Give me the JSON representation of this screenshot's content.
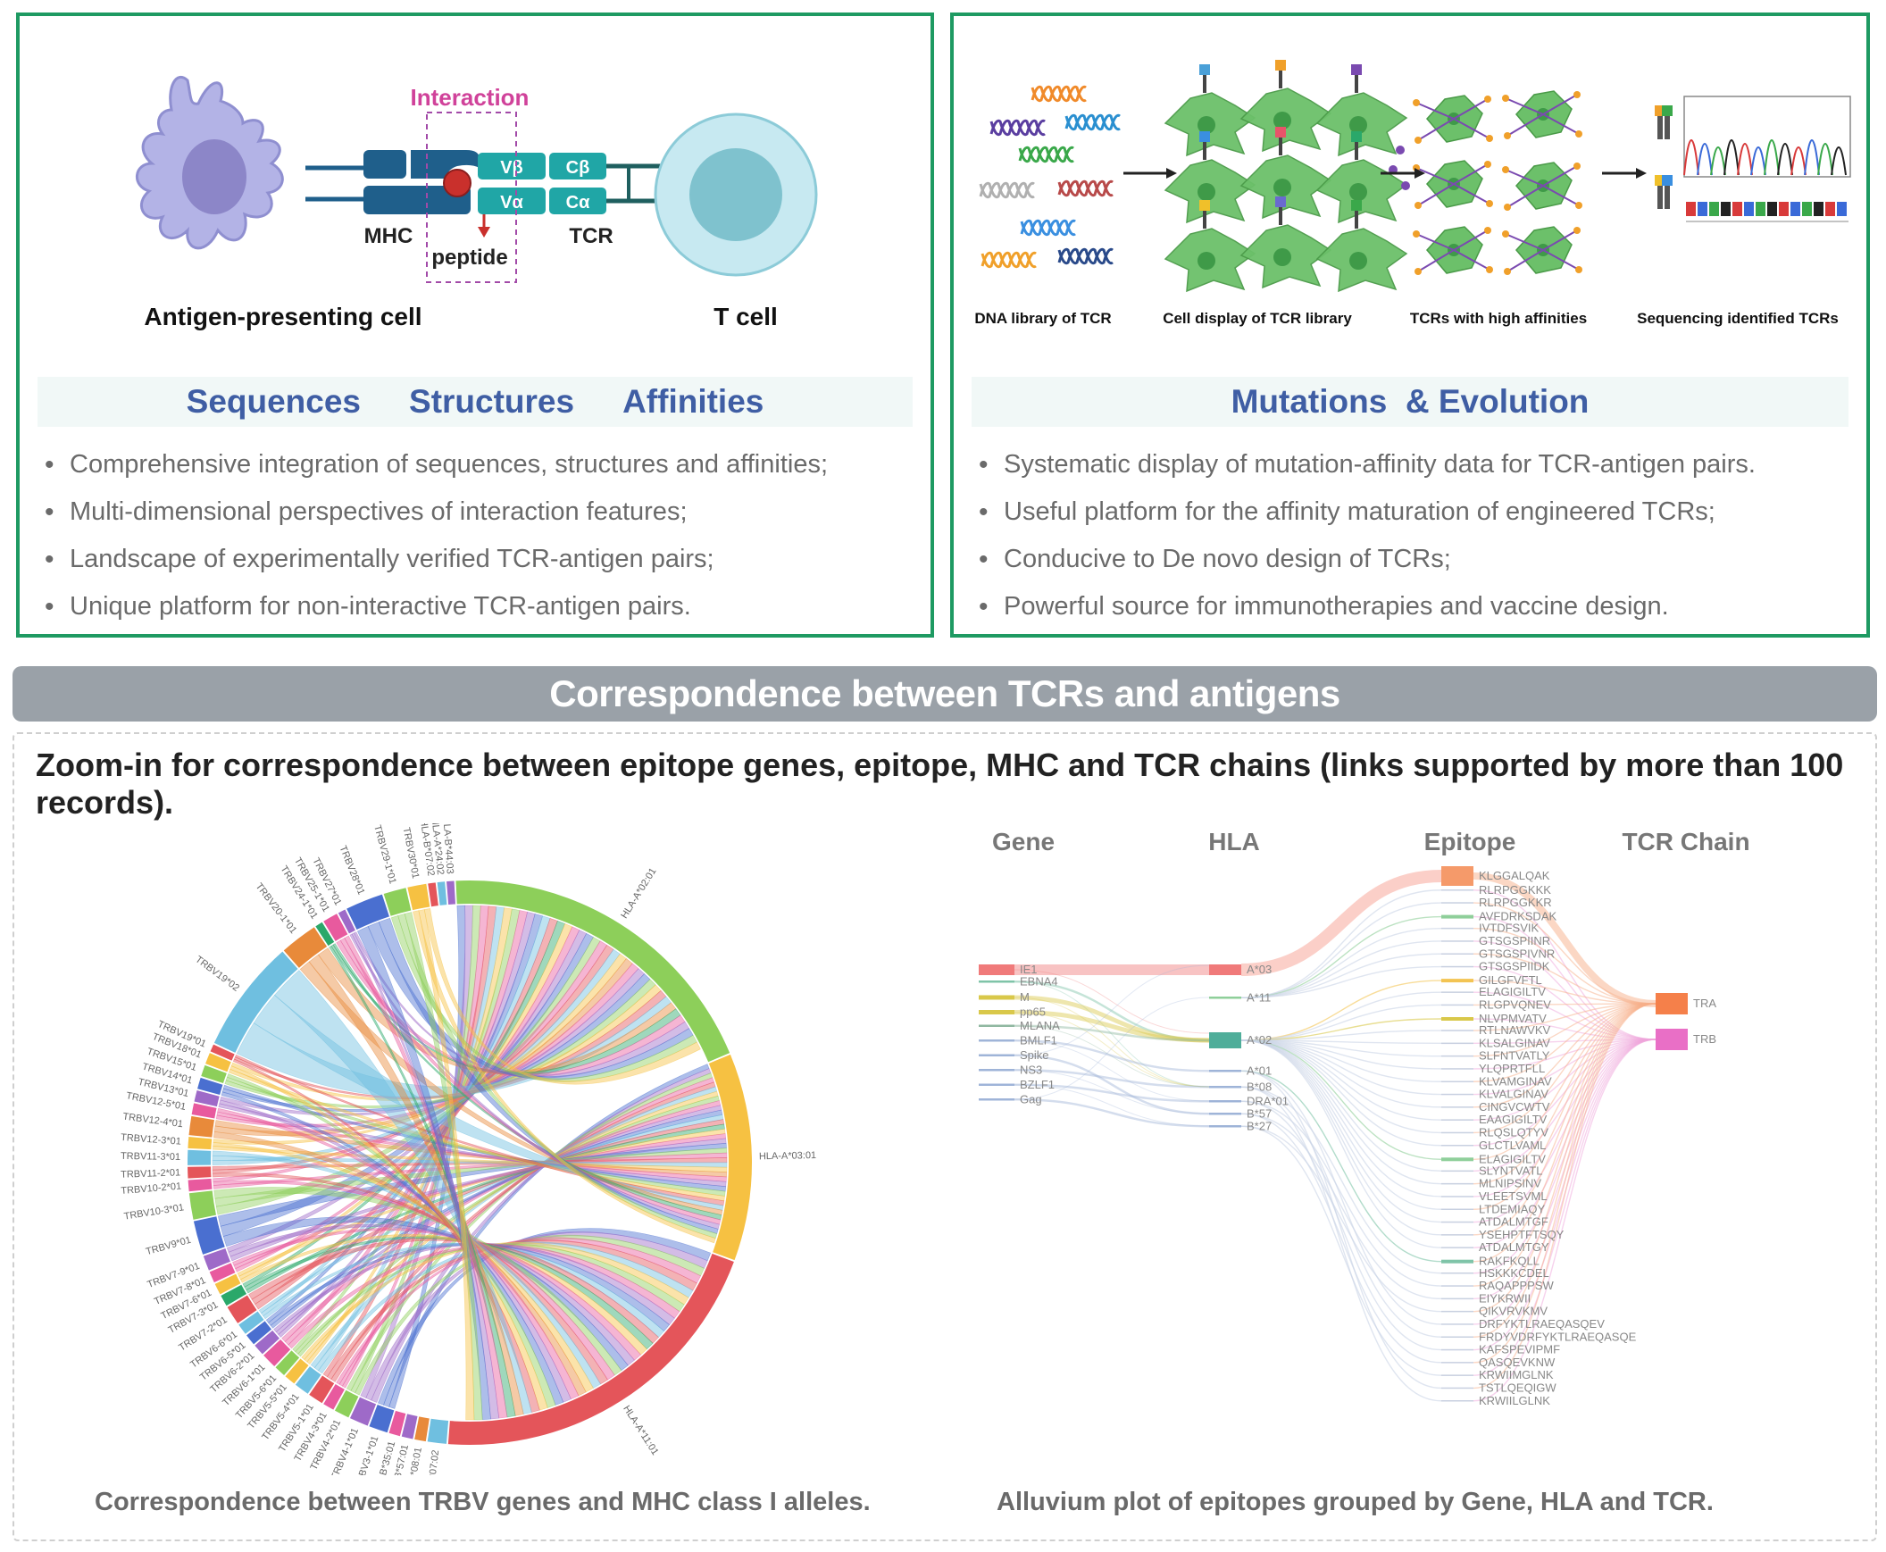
{
  "top_left": {
    "diagram": {
      "interaction_label": "Interaction",
      "vbeta": "Vβ",
      "cbeta": "Cβ",
      "valpha": "Vα",
      "calpha": "Cα",
      "mhc": "MHC",
      "peptide": "peptide",
      "tcr": "TCR",
      "apc_label": "Antigen-presenting cell",
      "tcell_label": "T cell"
    },
    "band": [
      "Sequences",
      "Structures",
      "Affinities"
    ],
    "bullets": [
      "Comprehensive integration of sequences, structures and affinities;",
      "Multi-dimensional perspectives of interaction features;",
      "Landscape of experimentally verified TCR-antigen pairs;",
      "Unique platform for non-interactive TCR-antigen pairs."
    ]
  },
  "top_right": {
    "steps": [
      "DNA library of TCR",
      "Cell display of TCR library",
      "TCRs with high affinities",
      "Sequencing identified TCRs"
    ],
    "band": "Mutations  & Evolution",
    "bullets": [
      "Systematic display of mutation-affinity data for TCR-antigen pairs.",
      "Useful platform for the affinity maturation of engineered TCRs;",
      "Conducive to De novo design of TCRs;",
      "Powerful source for immunotherapies and vaccine design."
    ]
  },
  "section_title": "Correspondence between TCRs and antigens",
  "lower": {
    "heading": "Zoom-in for correspondence between epitope genes, epitope, MHC and TCR chains (links supported by more than 100 records).",
    "chord_caption": "Correspondence between TRBV genes and MHC class I alleles.",
    "alluvium_caption": "Alluvium plot of epitopes grouped by Gene, HLA and TCR.",
    "chord": {
      "segments": [
        {
          "label": "HLA-A*02:01",
          "color": "#8dcf5a",
          "size": 90
        },
        {
          "label": "HLA-A*03:01",
          "color": "#f6c142",
          "size": 55
        },
        {
          "label": "HLA-A*11:01",
          "color": "#e4555a",
          "size": 95
        },
        {
          "label": "HLA-B*07:02",
          "color": "#6fbfe0",
          "size": 5
        },
        {
          "label": "HLA-B*08:01",
          "color": "#e88a3a",
          "size": 3
        },
        {
          "label": "HLA-B*57:01",
          "color": "#9e6ac8",
          "size": 3
        },
        {
          "label": "HLA-B*35:01",
          "color": "#e85a9e",
          "size": 3
        },
        {
          "label": "TRBV3-1*01",
          "color": "#4a6fd0",
          "size": 5
        },
        {
          "label": "TRBV4-1*01",
          "color": "#9e6ac8",
          "size": 5
        },
        {
          "label": "TRBV4-2*01",
          "color": "#8dcf5a",
          "size": 4
        },
        {
          "label": "TRBV4-3*01",
          "color": "#e85a9e",
          "size": 3
        },
        {
          "label": "TRBV5-1*01",
          "color": "#e4555a",
          "size": 4
        },
        {
          "label": "TRBV5-4*01",
          "color": "#6fbfe0",
          "size": 4
        },
        {
          "label": "TRBV5-5*01",
          "color": "#f6c142",
          "size": 3
        },
        {
          "label": "TRBV5-6*01",
          "color": "#8dcf5a",
          "size": 3
        },
        {
          "label": "TRBV6-1*01",
          "color": "#e85a9e",
          "size": 4
        },
        {
          "label": "TRBV6-2*01",
          "color": "#9e6ac8",
          "size": 3
        },
        {
          "label": "TRBV6-5*01",
          "color": "#4a6fd0",
          "size": 3
        },
        {
          "label": "TRBV6-6*01",
          "color": "#6fbfe0",
          "size": 3
        },
        {
          "label": "TRBV7-2*01",
          "color": "#e4555a",
          "size": 5
        },
        {
          "label": "TRBV7-3*01",
          "color": "#2aa86a",
          "size": 3
        },
        {
          "label": "TRBV7-6*01",
          "color": "#f6c142",
          "size": 3
        },
        {
          "label": "TRBV7-8*01",
          "color": "#e85a9e",
          "size": 3
        },
        {
          "label": "TRBV7-9*01",
          "color": "#9e6ac8",
          "size": 4
        },
        {
          "label": "TRBV9*01",
          "color": "#4a6fd0",
          "size": 9
        },
        {
          "label": "TRBV10-3*01",
          "color": "#8dcf5a",
          "size": 7
        },
        {
          "label": "TRBV10-2*01",
          "color": "#e85a9e",
          "size": 3
        },
        {
          "label": "TRBV11-2*01",
          "color": "#e4555a",
          "size": 3
        },
        {
          "label": "TRBV11-3*01",
          "color": "#6fbfe0",
          "size": 4
        },
        {
          "label": "TRBV12-3*01",
          "color": "#f6c142",
          "size": 3
        },
        {
          "label": "TRBV12-4*01",
          "color": "#e88a3a",
          "size": 5
        },
        {
          "label": "TRBV12-5*01",
          "color": "#e85a9e",
          "size": 3
        },
        {
          "label": "TRBV13*01",
          "color": "#9e6ac8",
          "size": 3
        },
        {
          "label": "TRBV14*01",
          "color": "#4a6fd0",
          "size": 3
        },
        {
          "label": "TRBV15*01",
          "color": "#8dcf5a",
          "size": 3
        },
        {
          "label": "TRBV18*01",
          "color": "#f6c142",
          "size": 3
        },
        {
          "label": "TRBV19*01",
          "color": "#e4555a",
          "size": 2
        },
        {
          "label": "TRBV19*02",
          "color": "#6fbfe0",
          "size": 30
        },
        {
          "label": "TRBV20-1*01",
          "color": "#e88a3a",
          "size": 10
        },
        {
          "label": "TRBV24-1*01",
          "color": "#2aa86a",
          "size": 2
        },
        {
          "label": "TRBV25-1*01",
          "color": "#e85a9e",
          "size": 4
        },
        {
          "label": "TRBV27*01",
          "color": "#9e6ac8",
          "size": 2
        },
        {
          "label": "TRBV28*01",
          "color": "#4a6fd0",
          "size": 10
        },
        {
          "label": "TRBV29-1*01",
          "color": "#8dcf5a",
          "size": 6
        },
        {
          "label": "TRBV30*01",
          "color": "#f6c142",
          "size": 5
        },
        {
          "label": "HLA-B*07:02",
          "color": "#e4555a",
          "size": 2
        },
        {
          "label": "HLA-A*24:02",
          "color": "#6fbfe0",
          "size": 2
        },
        {
          "label": "HLA-B*44:03",
          "color": "#9e6ac8",
          "size": 2
        }
      ]
    },
    "alluvium": {
      "headers": [
        "Gene",
        "HLA",
        "Epitope",
        "TCR Chain"
      ],
      "genes": [
        {
          "label": "IE1",
          "color": "#f07a7a"
        },
        {
          "label": "EBNA4",
          "color": "#7fc4a8"
        },
        {
          "label": "M",
          "color": "#d9c84a"
        },
        {
          "label": "pp65",
          "color": "#d9c84a"
        },
        {
          "label": "MLANA",
          "color": "#8fb7a0"
        },
        {
          "label": "BMLF1",
          "color": "#9fb4d8"
        },
        {
          "label": "Spike",
          "color": "#9fb4d8"
        },
        {
          "label": "NS3",
          "color": "#9fb4d8"
        },
        {
          "label": "BZLF1",
          "color": "#9fb4d8"
        },
        {
          "label": "Gag",
          "color": "#9fb4d8"
        }
      ],
      "hla": [
        {
          "label": "A*03",
          "color": "#f07a7a"
        },
        {
          "label": "A*11",
          "color": "#8fcf9a"
        },
        {
          "label": "A*02",
          "color": "#4fae9a"
        },
        {
          "label": "A*01",
          "color": "#9fb4d8"
        },
        {
          "label": "B*08",
          "color": "#9fb4d8"
        },
        {
          "label": "DRA*01",
          "color": "#9fb4d8"
        },
        {
          "label": "B*57",
          "color": "#9fb4d8"
        },
        {
          "label": "B*27",
          "color": "#9fb4d8"
        }
      ],
      "epitopes": [
        {
          "label": "KLGGALQAK",
          "color": "#f59a6a"
        },
        {
          "label": "RLRPGGKKK",
          "color": "#c8d0e0"
        },
        {
          "label": "RLRPGGKKR",
          "color": "#c8d0e0"
        },
        {
          "label": "AVFDRKSDAK",
          "color": "#8fcf9a"
        },
        {
          "label": "IVTDFSVIK",
          "color": "#c8d0e0"
        },
        {
          "label": "GTSGSPIINR",
          "color": "#c8d0e0"
        },
        {
          "label": "GTSGSPIVNR",
          "color": "#c8d0e0"
        },
        {
          "label": "GTSGSPIIDK",
          "color": "#c8d0e0"
        },
        {
          "label": "GILGFVFTL",
          "color": "#f3c453"
        },
        {
          "label": "ELAGIGILTV",
          "color": "#c8d0e0"
        },
        {
          "label": "RLGPVQNEV",
          "color": "#c8d0e0"
        },
        {
          "label": "NLVPMVATV",
          "color": "#d9c84a"
        },
        {
          "label": "RTLNAWVKV",
          "color": "#c8d0e0"
        },
        {
          "label": "KLSALGINAV",
          "color": "#c8d0e0"
        },
        {
          "label": "SLFNTVATLY",
          "color": "#c8d0e0"
        },
        {
          "label": "YLQPRTFLL",
          "color": "#c8d0e0"
        },
        {
          "label": "KLVAMGINAV",
          "color": "#c8d0e0"
        },
        {
          "label": "KLVALGINAV",
          "color": "#c8d0e0"
        },
        {
          "label": "CINGVCWTV",
          "color": "#c8d0e0"
        },
        {
          "label": "EAAGIGILTV",
          "color": "#c8d0e0"
        },
        {
          "label": "RLQSLQTYV",
          "color": "#c8d0e0"
        },
        {
          "label": "GLCTLVAML",
          "color": "#c8d0e0"
        },
        {
          "label": "ELAGIGILTV",
          "color": "#8fcf9a"
        },
        {
          "label": "SLYNTVATL",
          "color": "#c8d0e0"
        },
        {
          "label": "MLNIPSINV",
          "color": "#c8d0e0"
        },
        {
          "label": "VLEETSVML",
          "color": "#c8d0e0"
        },
        {
          "label": "LTDEMIAQY",
          "color": "#c8d0e0"
        },
        {
          "label": "ATDALMTGF",
          "color": "#c8d0e0"
        },
        {
          "label": "YSEHPTFTSQY",
          "color": "#c8d0e0"
        },
        {
          "label": "ATDALMTGY",
          "color": "#c8d0e0"
        },
        {
          "label": "RAKFKQLL",
          "color": "#7fc4a8"
        },
        {
          "label": "HSKKKCDEL",
          "color": "#c8d0e0"
        },
        {
          "label": "RAQAPPPSW",
          "color": "#c8d0e0"
        },
        {
          "label": "EIYKRWII",
          "color": "#c8d0e0"
        },
        {
          "label": "QIKVRVKMV",
          "color": "#c8d0e0"
        },
        {
          "label": "DRFYKTLRAEQASQEV",
          "color": "#c8d0e0"
        },
        {
          "label": "FRDYVDRFYKTLRAEQASQE",
          "color": "#c8d0e0"
        },
        {
          "label": "KAFSPEVIPMF",
          "color": "#c8d0e0"
        },
        {
          "label": "QASQEVKNW",
          "color": "#c8d0e0"
        },
        {
          "label": "KRWIIMGLNK",
          "color": "#c8d0e0"
        },
        {
          "label": "TSTLQEQIGW",
          "color": "#c8d0e0"
        },
        {
          "label": "KRWIILGLNK",
          "color": "#c8d0e0"
        }
      ],
      "chains": [
        {
          "label": "TRA",
          "color": "#f5804a"
        },
        {
          "label": "TRB",
          "color": "#e96fc6"
        }
      ]
    }
  }
}
